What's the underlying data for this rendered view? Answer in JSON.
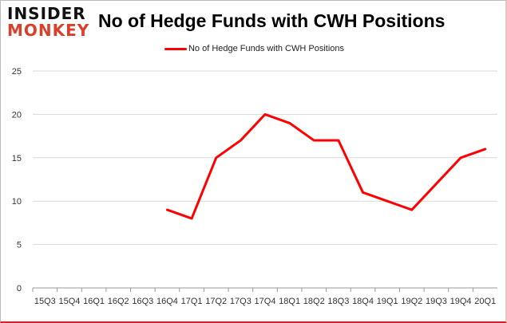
{
  "logo": {
    "line1": "INSIDER",
    "line2": "MONKEY"
  },
  "chart_data": {
    "type": "line",
    "title": "No of Hedge Funds with CWH Positions",
    "xlabel": "",
    "ylabel": "",
    "categories": [
      "15Q3",
      "15Q4",
      "16Q1",
      "16Q2",
      "16Q3",
      "16Q4",
      "17Q1",
      "17Q2",
      "17Q3",
      "17Q4",
      "18Q1",
      "18Q2",
      "18Q3",
      "18Q4",
      "19Q1",
      "19Q2",
      "19Q3",
      "19Q4",
      "20Q1"
    ],
    "series": [
      {
        "name": "No of Hedge Funds with CWH Positions",
        "color": "#ff0000",
        "values": [
          null,
          null,
          null,
          null,
          null,
          9,
          8,
          15,
          17,
          20,
          19,
          17,
          17,
          11,
          10,
          9,
          12,
          15,
          16
        ]
      }
    ],
    "ylim": [
      0,
      25
    ],
    "yticks": [
      0,
      5,
      10,
      15,
      20,
      25
    ],
    "grid": true,
    "legend": "top-center"
  }
}
